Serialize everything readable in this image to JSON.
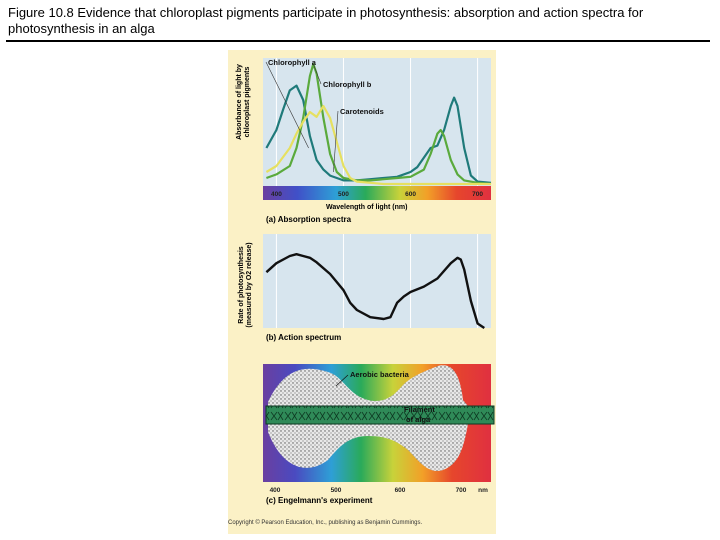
{
  "slide": {
    "title": "Figure 10.8 Evidence that chloroplast pigments participate in photosynthesis: absorption and action spectra for photosynthesis in an alga"
  },
  "figure": {
    "credit": "Copyright © Pearson Education, Inc., publishing as Benjamin Cummings."
  },
  "chart_data": [
    {
      "type": "line",
      "panel_caption": "(a) Absorption spectra",
      "xlabel": "Wavelength of light (nm)",
      "ylabel": "Absorbance of light by chloroplast pigments",
      "xlim": [
        380,
        720
      ],
      "x_ticks": [
        "400",
        "500",
        "600",
        "700"
      ],
      "grid": true,
      "series": [
        {
          "name": "Chlorophyll a",
          "color": "#1f7a7a",
          "x": [
            385,
            400,
            410,
            420,
            430,
            440,
            450,
            460,
            470,
            480,
            500,
            520,
            540,
            560,
            580,
            600,
            610,
            620,
            630,
            640,
            650,
            660,
            665,
            670,
            680,
            690,
            700,
            720
          ],
          "y": [
            0.3,
            0.45,
            0.62,
            0.78,
            0.82,
            0.7,
            0.4,
            0.2,
            0.12,
            0.07,
            0.03,
            0.03,
            0.04,
            0.05,
            0.06,
            0.1,
            0.14,
            0.22,
            0.3,
            0.32,
            0.45,
            0.65,
            0.72,
            0.65,
            0.3,
            0.07,
            0.02,
            0.01
          ]
        },
        {
          "name": "Chlorophyll b",
          "color": "#5aaa3c",
          "x": [
            385,
            400,
            420,
            430,
            440,
            450,
            455,
            460,
            470,
            480,
            490,
            500,
            520,
            540,
            560,
            580,
            600,
            620,
            630,
            640,
            645,
            650,
            660,
            670,
            680,
            700,
            720
          ],
          "y": [
            0.05,
            0.08,
            0.15,
            0.3,
            0.55,
            0.9,
            1.0,
            0.92,
            0.55,
            0.25,
            0.1,
            0.05,
            0.03,
            0.03,
            0.04,
            0.05,
            0.06,
            0.12,
            0.25,
            0.42,
            0.45,
            0.4,
            0.2,
            0.08,
            0.03,
            0.01,
            0.0
          ]
        },
        {
          "name": "Carotenoids",
          "color": "#e6e060",
          "x": [
            385,
            400,
            420,
            430,
            440,
            450,
            460,
            470,
            480,
            490,
            500,
            510,
            520,
            540,
            560,
            600,
            720
          ],
          "y": [
            0.1,
            0.15,
            0.3,
            0.42,
            0.52,
            0.6,
            0.56,
            0.65,
            0.55,
            0.35,
            0.15,
            0.05,
            0.02,
            0.01,
            0.0,
            0.0,
            0.0
          ]
        }
      ],
      "annotations": [
        "Chlorophyll a",
        "Chlorophyll b",
        "Carotenoids"
      ]
    },
    {
      "type": "line",
      "panel_caption": "(b) Action spectrum",
      "ylabel": "Rate of photosynthesis (measured by O2 release)",
      "xlim": [
        380,
        720
      ],
      "grid": true,
      "series": [
        {
          "name": "",
          "color": "#111111",
          "x": [
            385,
            400,
            420,
            430,
            440,
            450,
            460,
            480,
            500,
            510,
            520,
            540,
            560,
            570,
            580,
            590,
            600,
            620,
            640,
            660,
            670,
            675,
            680,
            690,
            700,
            710
          ],
          "y": [
            0.62,
            0.72,
            0.8,
            0.82,
            0.8,
            0.78,
            0.73,
            0.6,
            0.42,
            0.28,
            0.2,
            0.12,
            0.1,
            0.12,
            0.28,
            0.35,
            0.4,
            0.46,
            0.55,
            0.72,
            0.78,
            0.76,
            0.65,
            0.3,
            0.05,
            0.0
          ]
        }
      ]
    },
    {
      "type": "other",
      "panel_caption": "(c) Engelmann's experiment",
      "x_ticks": [
        "400",
        "500",
        "600",
        "700",
        "nm"
      ],
      "annotations": [
        "Aerobic bacteria",
        "Filament of alga"
      ]
    }
  ]
}
